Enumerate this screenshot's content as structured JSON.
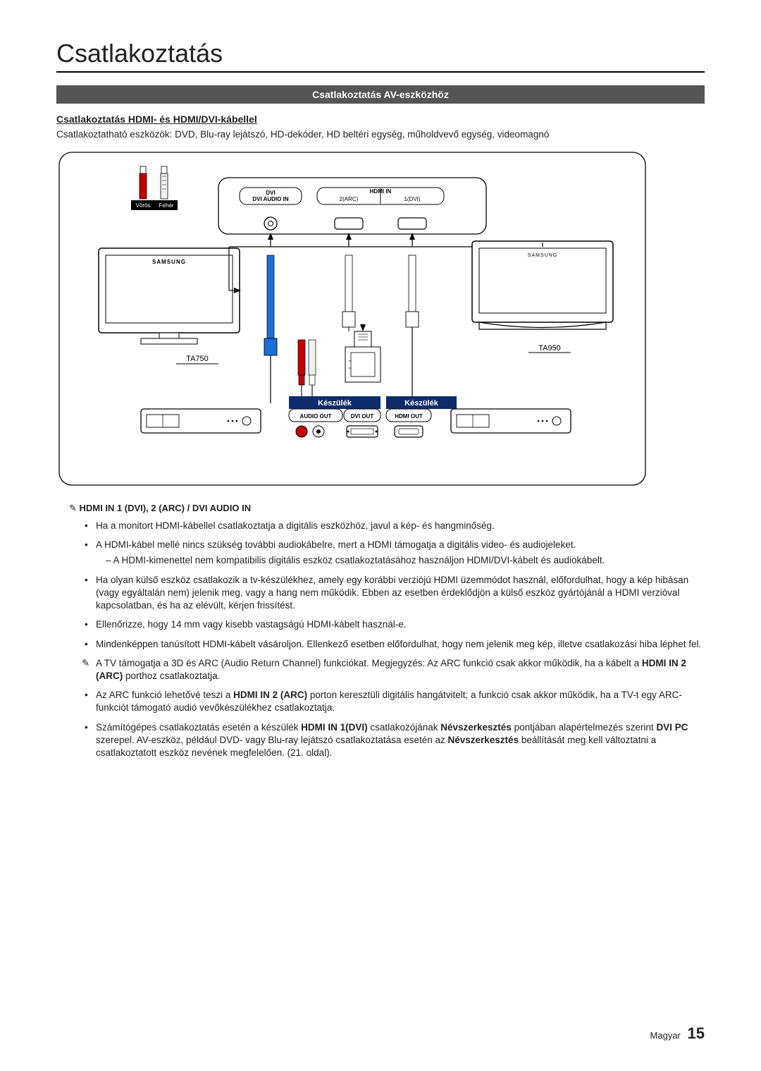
{
  "title": "Csatlakoztatás",
  "section_band": "Csatlakoztatás AV-eszközhöz",
  "sub_heading": "Csatlakoztatás HDMI- és HDMI/DVI-kábellel",
  "intro": "Csatlakoztatható eszközök: DVD, Blu-ray lejátszó, HD-dekóder, HD beltéri egység, műholdvevő egység, videomagnó",
  "diagram": {
    "labels": {
      "voros": "Vörös",
      "feher": "Fehér",
      "dvi_audio_in": "DVI AUDIO IN",
      "hdmi_in": "HDMI IN",
      "hdmi_2arc": "2(ARC)",
      "hdmi_1dvi": "1(DVI)",
      "ta750": "TA750",
      "ta950": "TA950",
      "keszulek": "Készülék",
      "audio_out": "AUDIO OUT",
      "dvi_out": "DVI OUT",
      "hdmi_out": "HDMI OUT",
      "samsung": "SAMSUNG"
    },
    "colors": {
      "frame": "#000000",
      "bg": "#ffffff",
      "blue": "#1a6fd6",
      "red": "#c40000",
      "white_plug": "#f0f0f0",
      "box_border": "#000000",
      "header_blue": "#0e2c6b",
      "header_blue_text": "#ffffff"
    }
  },
  "note_heading": "HDMI IN 1 (DVI), 2 (ARC) / DVI AUDIO IN",
  "bullets": [
    {
      "text": "Ha a monitort HDMI-kábellel csatlakoztatja a digitális eszközhöz, javul a kép- és hangminőség."
    },
    {
      "text": "A HDMI-kábel mellé nincs szükség további audiokábelre, mert a HDMI támogatja a digitális video- és audiojeleket.",
      "sub": "A HDMI-kimenettel nem kompatibilis digitális eszköz csatlakoztatásához használjon HDMI/DVI-kábelt és audiokábelt."
    },
    {
      "text": "Ha olyan külső eszköz csatlakozik a tv-készülékhez, amely egy korábbi verziójú HDMI üzemmódot használ, előfordulhat, hogy a kép hibásan (vagy egyáltalán nem) jelenik meg, vagy a hang nem működik. Ebben az esetben érdeklődjön a külső eszköz gyártójánál a HDMI verzióval kapcsolatban, és ha az elévült, kérjen frissítést."
    },
    {
      "text": "Ellenőrizze, hogy 14 mm vagy kisebb vastagságú HDMI-kábelt használ-e."
    },
    {
      "text": "Mindenképpen tanúsított HDMI-kábelt vásároljon. Ellenkező esetben előfordulhat, hogy nem jelenik meg kép, illetve csatlakozási hiba léphet fel."
    },
    {
      "icon": true,
      "html": "A TV támogatja a 3D és ARC (Audio Return Channel) funkciókat. Megjegyzés: Az ARC funkció csak akkor működik, ha a kábelt a <b>HDMI IN 2 (ARC)</b> porthoz csatlakoztatja."
    },
    {
      "html": "Az ARC funkció lehetővé teszi a <b>HDMI IN 2 (ARC)</b> porton keresztüli digitális hangátvitelt; a funkció csak akkor működik, ha a TV-t egy ARC-funkciót támogató audió vevőkészülékhez csatlakoztatja."
    },
    {
      "html": "Számítógépes csatlakoztatás esetén a készülék <b>HDMI IN 1(DVI)</b> csatlakozójának <b>Névszerkesztés</b> pontjában alapértelmezés szerint <b>DVI PC</b> szerepel. AV-eszköz, például DVD- vagy Blu-ray lejátszó csatlakoztatása esetén az <b>Névszerkesztés</b> beállítását meg kell változtatni a csatlakoztatott eszköz nevének megfelelően. (21. oldal)."
    }
  ],
  "footer": {
    "lang": "Magyar",
    "page": "15"
  }
}
